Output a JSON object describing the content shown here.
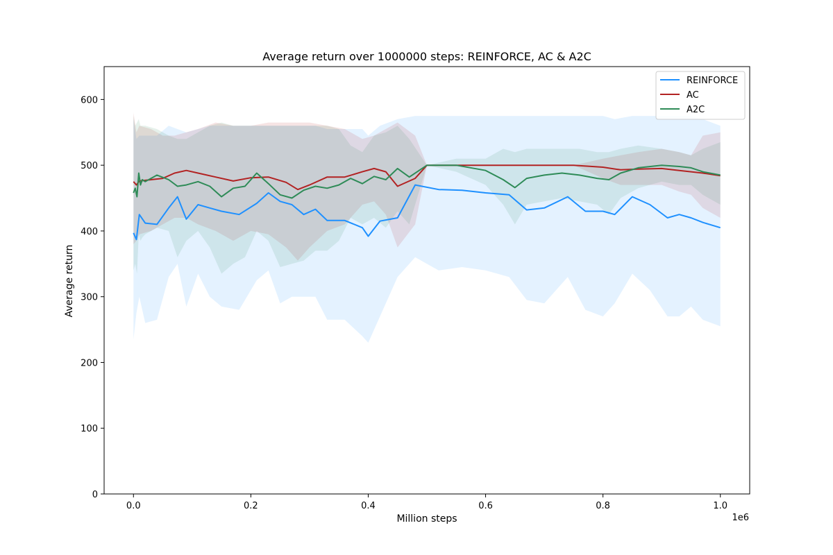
{
  "chart_data": {
    "type": "line",
    "title": "Average return over 1000000 steps: REINFORCE, AC & A2C",
    "xlabel": "Million steps",
    "ylabel": "Average return",
    "x_offset_label": "1e6",
    "xlim": [
      -0.05,
      1.05
    ],
    "ylim": [
      0,
      650
    ],
    "xticks": [
      0.0,
      0.2,
      0.4,
      0.6,
      0.8,
      1.0
    ],
    "xtick_labels": [
      "0.0",
      "0.2",
      "0.4",
      "0.6",
      "0.8",
      "1.0"
    ],
    "yticks": [
      0,
      100,
      200,
      300,
      400,
      500,
      600
    ],
    "ytick_labels": [
      "0",
      "100",
      "200",
      "300",
      "400",
      "500",
      "600"
    ],
    "grid": false,
    "legend_position": "top-right",
    "series": [
      {
        "name": "REINFORCE",
        "color": "#1e90ff",
        "x": [
          0.0,
          0.005,
          0.01,
          0.02,
          0.04,
          0.06,
          0.075,
          0.09,
          0.11,
          0.13,
          0.15,
          0.18,
          0.21,
          0.23,
          0.25,
          0.27,
          0.29,
          0.31,
          0.33,
          0.36,
          0.39,
          0.4,
          0.42,
          0.45,
          0.48,
          0.52,
          0.56,
          0.6,
          0.64,
          0.67,
          0.7,
          0.74,
          0.77,
          0.8,
          0.82,
          0.85,
          0.88,
          0.91,
          0.93,
          0.95,
          0.97,
          1.0
        ],
        "y": [
          397,
          387,
          425,
          412,
          410,
          435,
          452,
          418,
          440,
          435,
          430,
          425,
          442,
          458,
          445,
          440,
          425,
          433,
          416,
          416,
          405,
          392,
          415,
          420,
          470,
          463,
          462,
          458,
          455,
          432,
          435,
          452,
          430,
          430,
          425,
          452,
          440,
          420,
          425,
          420,
          413,
          405
        ],
        "band_upper": [
          570,
          540,
          545,
          545,
          545,
          560,
          555,
          550,
          555,
          560,
          560,
          560,
          560,
          560,
          560,
          560,
          560,
          560,
          555,
          555,
          555,
          545,
          560,
          570,
          575,
          575,
          575,
          575,
          575,
          575,
          575,
          575,
          575,
          575,
          570,
          575,
          575,
          575,
          575,
          575,
          570,
          560
        ],
        "band_lower": [
          235,
          275,
          300,
          260,
          265,
          330,
          350,
          285,
          335,
          300,
          285,
          280,
          325,
          340,
          290,
          300,
          300,
          300,
          265,
          265,
          240,
          230,
          270,
          330,
          360,
          340,
          345,
          340,
          330,
          295,
          290,
          330,
          280,
          270,
          290,
          335,
          310,
          270,
          270,
          285,
          265,
          255
        ]
      },
      {
        "name": "AC",
        "color": "#b22222",
        "x": [
          0.0,
          0.005,
          0.01,
          0.03,
          0.05,
          0.07,
          0.09,
          0.11,
          0.14,
          0.17,
          0.2,
          0.23,
          0.26,
          0.28,
          0.3,
          0.33,
          0.36,
          0.39,
          0.41,
          0.43,
          0.45,
          0.48,
          0.5,
          0.55,
          0.6,
          0.65,
          0.7,
          0.75,
          0.8,
          0.83,
          0.86,
          0.9,
          0.93,
          0.95,
          0.97,
          1.0
        ],
        "y": [
          475,
          470,
          476,
          478,
          480,
          488,
          492,
          488,
          482,
          476,
          481,
          482,
          474,
          463,
          470,
          482,
          482,
          490,
          495,
          490,
          468,
          480,
          500,
          500,
          500,
          500,
          500,
          500,
          497,
          493,
          494,
          495,
          492,
          490,
          488,
          484
        ],
        "band_upper": [
          580,
          550,
          560,
          555,
          545,
          545,
          550,
          555,
          565,
          560,
          560,
          565,
          565,
          565,
          565,
          560,
          555,
          540,
          545,
          555,
          565,
          545,
          500,
          500,
          500,
          500,
          500,
          500,
          510,
          515,
          520,
          525,
          520,
          515,
          545,
          550
        ],
        "band_lower": [
          380,
          385,
          395,
          400,
          410,
          420,
          420,
          410,
          400,
          385,
          400,
          395,
          375,
          355,
          375,
          400,
          410,
          440,
          445,
          425,
          375,
          410,
          500,
          500,
          500,
          500,
          500,
          500,
          480,
          470,
          470,
          470,
          460,
          455,
          435,
          420
        ]
      },
      {
        "name": "A2C",
        "color": "#2e8b57",
        "x": [
          0.0,
          0.003,
          0.006,
          0.009,
          0.012,
          0.015,
          0.02,
          0.04,
          0.06,
          0.075,
          0.09,
          0.11,
          0.13,
          0.15,
          0.17,
          0.19,
          0.21,
          0.23,
          0.25,
          0.27,
          0.29,
          0.31,
          0.33,
          0.35,
          0.37,
          0.39,
          0.41,
          0.43,
          0.45,
          0.47,
          0.5,
          0.55,
          0.6,
          0.63,
          0.65,
          0.67,
          0.7,
          0.73,
          0.76,
          0.79,
          0.81,
          0.83,
          0.86,
          0.9,
          0.93,
          0.95,
          0.97,
          1.0
        ],
        "y": [
          458,
          465,
          452,
          488,
          470,
          478,
          475,
          485,
          478,
          468,
          470,
          475,
          468,
          452,
          465,
          468,
          488,
          472,
          455,
          450,
          462,
          468,
          465,
          470,
          480,
          472,
          483,
          478,
          495,
          482,
          500,
          500,
          492,
          478,
          466,
          480,
          485,
          488,
          485,
          480,
          478,
          488,
          496,
          500,
          498,
          496,
          490,
          485
        ],
        "band_upper": [
          575,
          560,
          565,
          570,
          560,
          560,
          560,
          555,
          545,
          540,
          540,
          550,
          560,
          565,
          560,
          560,
          560,
          560,
          560,
          560,
          560,
          560,
          560,
          555,
          530,
          520,
          545,
          550,
          560,
          540,
          500,
          510,
          510,
          525,
          520,
          525,
          525,
          525,
          525,
          520,
          520,
          525,
          530,
          525,
          520,
          515,
          525,
          535
        ],
        "band_lower": [
          340,
          350,
          335,
          395,
          385,
          390,
          395,
          405,
          400,
          360,
          385,
          400,
          375,
          335,
          350,
          360,
          400,
          385,
          345,
          350,
          355,
          370,
          370,
          385,
          420,
          410,
          420,
          405,
          430,
          410,
          500,
          490,
          470,
          440,
          410,
          440,
          445,
          450,
          445,
          440,
          425,
          450,
          465,
          475,
          470,
          470,
          455,
          440
        ]
      }
    ]
  }
}
